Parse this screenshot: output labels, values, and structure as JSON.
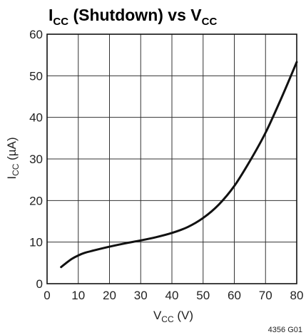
{
  "chart_data": {
    "type": "line",
    "title": {
      "main": "I",
      "main_sub": "CC",
      "rest": " (Shutdown) vs V",
      "rest_sub": "CC"
    },
    "xlabel": {
      "main": "V",
      "sub": "CC",
      "rest": " (V)"
    },
    "ylabel": {
      "main": "I",
      "sub": "CC",
      "rest": " (µA)"
    },
    "xlim": [
      0,
      80
    ],
    "ylim": [
      0,
      60
    ],
    "xticks": [
      0,
      10,
      20,
      30,
      40,
      50,
      60,
      70,
      80
    ],
    "yticks": [
      0,
      10,
      20,
      30,
      40,
      50,
      60
    ],
    "grid": true,
    "series": [
      {
        "x": [
          4.5,
          6,
          8,
          10,
          12,
          15,
          20,
          25,
          30,
          35,
          40,
          45,
          50,
          55,
          60,
          65,
          70,
          75,
          80
        ],
        "values": [
          4.0,
          4.9,
          6.0,
          6.8,
          7.4,
          8.0,
          8.9,
          9.7,
          10.4,
          11.2,
          12.2,
          13.6,
          15.8,
          19.0,
          23.5,
          29.5,
          36.3,
          44.5,
          53.3
        ]
      }
    ],
    "footnote": "4356 G01"
  },
  "colors": {
    "line": "#111111",
    "grid": "#333333",
    "text": "#222222"
  }
}
